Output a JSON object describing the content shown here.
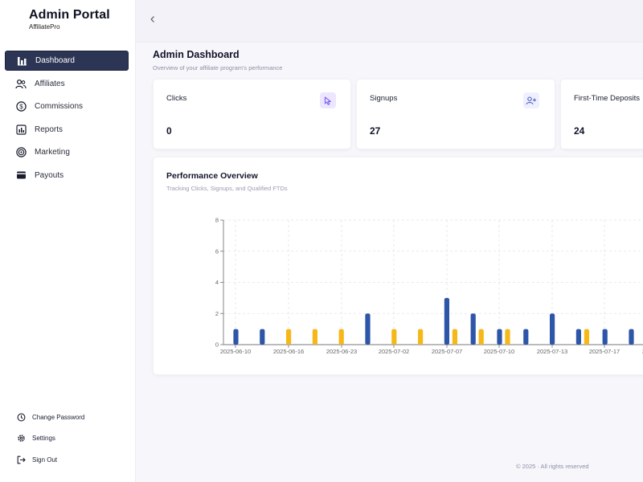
{
  "brand": {
    "title": "Admin Portal",
    "subtitle": "AffiliatePro"
  },
  "sidebar": {
    "items": [
      {
        "label": "Dashboard",
        "icon": "bar-chart-icon",
        "active": true
      },
      {
        "label": "Affiliates",
        "icon": "users-icon",
        "active": false
      },
      {
        "label": "Commissions",
        "icon": "dollar-circle-icon",
        "active": false
      },
      {
        "label": "Reports",
        "icon": "report-icon",
        "active": false
      },
      {
        "label": "Marketing",
        "icon": "target-icon",
        "active": false
      },
      {
        "label": "Payouts",
        "icon": "wallet-icon",
        "active": false
      }
    ],
    "bottom": [
      {
        "label": "Change Password",
        "icon": "key-icon"
      },
      {
        "label": "Settings",
        "icon": "gear-icon"
      },
      {
        "label": "Sign Out",
        "icon": "sign-out-icon"
      }
    ]
  },
  "topbar": {
    "back_icon": "chevron-left-icon"
  },
  "page": {
    "title": "Admin Dashboard",
    "subtitle": "Overview of your affiliate program's performance"
  },
  "stats": [
    {
      "label": "Clicks",
      "value": "0",
      "icon": "cursor-icon",
      "icon_bg": "#ece6ff",
      "icon_color": "#7b5cf0"
    },
    {
      "label": "Signups",
      "value": "27",
      "icon": "user-plus-icon",
      "icon_bg": "#eef0ff",
      "icon_color": "#5060b8"
    },
    {
      "label": "First-Time Deposits",
      "value": "24",
      "icon": "",
      "icon_bg": "#ffffff",
      "icon_color": "#5060b8"
    }
  ],
  "chart_card": {
    "title": "Performance Overview",
    "subtitle": "Tracking Clicks, Signups, and Qualified FTDs"
  },
  "chart_data": {
    "type": "bar",
    "title": "Performance Overview",
    "x_tick_labels": [
      "2025-06-10",
      "2025-06-16",
      "2025-06-23",
      "2025-07-02",
      "2025-07-07",
      "2025-07-10",
      "2025-07-13",
      "2025-07-17",
      "2"
    ],
    "y_ticks": [
      0,
      2,
      4,
      6,
      8
    ],
    "ylim": [
      0,
      8
    ],
    "grid": true,
    "colors": {
      "blue": "#2d55a8",
      "yellow": "#f5b818"
    },
    "bars": [
      {
        "slot": 0,
        "series": "blue",
        "value": 1
      },
      {
        "slot": 1,
        "series": "blue",
        "value": 1
      },
      {
        "slot": 2,
        "series": "yellow",
        "value": 1
      },
      {
        "slot": 3,
        "series": "yellow",
        "value": 1
      },
      {
        "slot": 4,
        "series": "yellow",
        "value": 1
      },
      {
        "slot": 5,
        "series": "blue",
        "value": 2
      },
      {
        "slot": 6,
        "series": "yellow",
        "value": 1
      },
      {
        "slot": 7,
        "series": "yellow",
        "value": 1
      },
      {
        "slot": 8,
        "series": "blue",
        "value": 3
      },
      {
        "slot": 8,
        "series": "yellow",
        "value": 1
      },
      {
        "slot": 9,
        "series": "blue",
        "value": 2
      },
      {
        "slot": 9,
        "series": "yellow",
        "value": 1
      },
      {
        "slot": 10,
        "series": "blue",
        "value": 1
      },
      {
        "slot": 10,
        "series": "yellow",
        "value": 1
      },
      {
        "slot": 11,
        "series": "blue",
        "value": 1
      },
      {
        "slot": 12,
        "series": "blue",
        "value": 2
      },
      {
        "slot": 13,
        "series": "blue",
        "value": 1
      },
      {
        "slot": 13,
        "series": "yellow",
        "value": 1
      },
      {
        "slot": 14,
        "series": "blue",
        "value": 1
      },
      {
        "slot": 15,
        "series": "blue",
        "value": 1
      }
    ]
  },
  "footer": {
    "text": "© 2025 · All rights reserved"
  }
}
